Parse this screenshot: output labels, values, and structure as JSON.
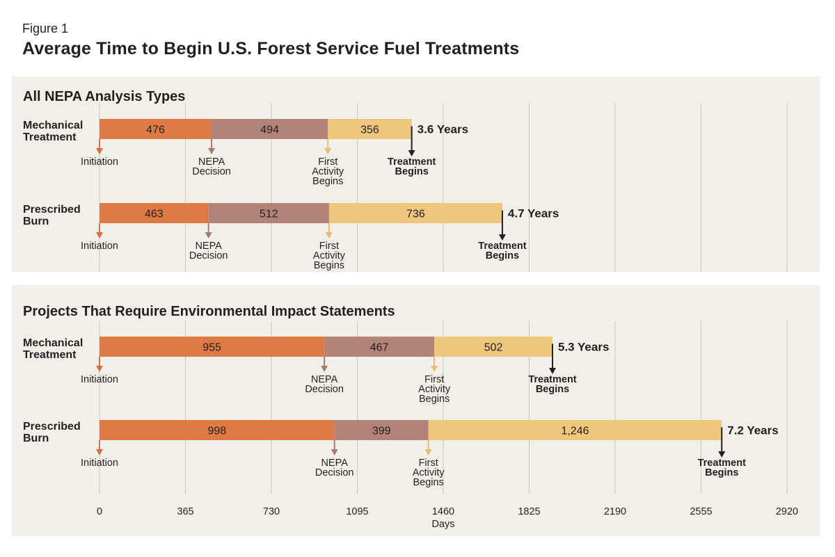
{
  "figure_label": "Figure 1",
  "figure_title": "Average Time to Begin U.S. Forest Service Fuel Treatments",
  "chart_data": {
    "type": "bar",
    "subtype": "horizontal-stacked-timeline",
    "xlabel": "Days",
    "xlim": [
      0,
      2920
    ],
    "xticks": [
      0,
      365,
      730,
      1095,
      1460,
      1825,
      2190,
      2555,
      2920
    ],
    "grid": true,
    "stage_colors": [
      "#e07a45",
      "#b3837a",
      "#eec67c"
    ],
    "stage_arrow_colors": [
      "#d5703d",
      "#a57a72",
      "#e8bc6a"
    ],
    "milestone_labels": {
      "initiation": "Initiation",
      "nepa_decision": "NEPA Decision",
      "first_activity": "First Activity Begins",
      "treatment_begins": "Treatment Begins"
    },
    "panels": [
      {
        "title": "All NEPA Analysis Types",
        "rows": [
          {
            "label": "Mechanical Treatment",
            "values": [
              476,
              494,
              356
            ],
            "value_labels": [
              "476",
              "494",
              "356"
            ],
            "total_label": "3.6 Years"
          },
          {
            "label": "Prescribed Burn",
            "values": [
              463,
              512,
              736
            ],
            "value_labels": [
              "463",
              "512",
              "736"
            ],
            "total_label": "4.7 Years"
          }
        ]
      },
      {
        "title": "Projects That Require Environmental Impact Statements",
        "rows": [
          {
            "label": "Mechanical Treatment",
            "values": [
              955,
              467,
              502
            ],
            "value_labels": [
              "955",
              "467",
              "502"
            ],
            "total_label": "5.3 Years"
          },
          {
            "label": "Prescribed Burn",
            "values": [
              998,
              399,
              1246
            ],
            "value_labels": [
              "998",
              "399",
              "1,246"
            ],
            "total_label": "7.2 Years"
          }
        ]
      }
    ]
  }
}
